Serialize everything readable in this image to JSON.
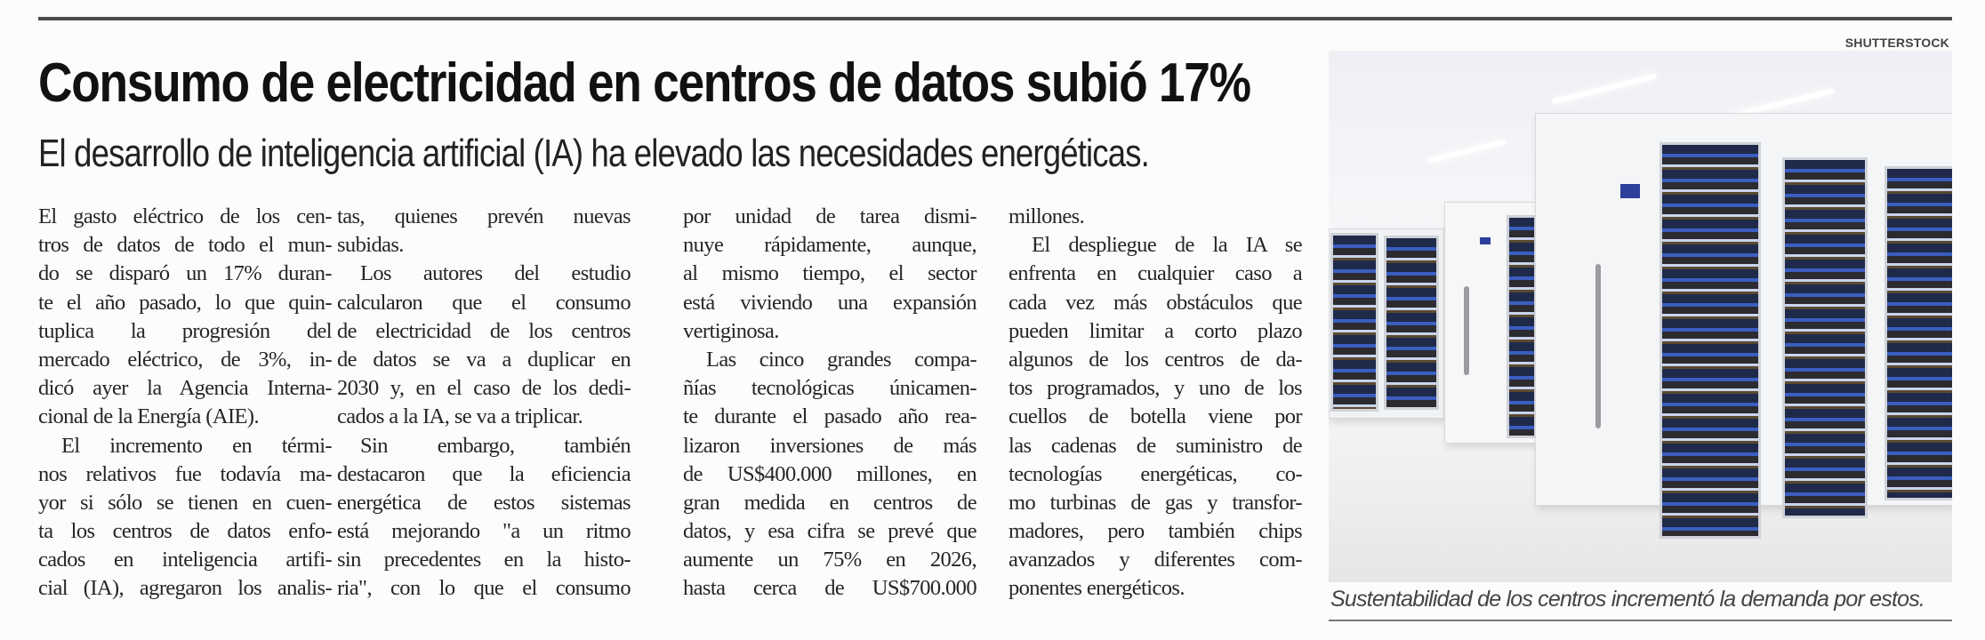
{
  "credit": "SHUTTERSTOCK",
  "headline": "Consumo de electricidad en centros de datos subió 17%",
  "subtitle": "El desarrollo de inteligencia artificial (IA) ha elevado las necesidades energéticas.",
  "columns": [
    [
      {
        "t": "El gasto eléctrico de los cen-"
      },
      {
        "t": "tros de datos de todo el mun-"
      },
      {
        "t": "do se disparó un 17% duran-"
      },
      {
        "t": "te el año pasado, lo que quin-"
      },
      {
        "t": "tuplica la progresión del"
      },
      {
        "t": "mercado eléctrico, de 3%, in-"
      },
      {
        "t": "dicó ayer la Agencia Interna-"
      },
      {
        "t": "cional de la Energía (AIE).",
        "end": true
      },
      {
        "t": "El incremento en térmi-",
        "indent": true
      },
      {
        "t": "nos relativos fue todavía ma-"
      },
      {
        "t": "yor si sólo se tienen en cuen-"
      },
      {
        "t": "ta los centros de datos enfo-"
      },
      {
        "t": "cados en inteligencia artifi-"
      },
      {
        "t": "cial (IA), agregaron los analis-"
      }
    ],
    [
      {
        "t": "tas, quienes prevén nuevas"
      },
      {
        "t": "subidas.",
        "end": true
      },
      {
        "t": "Los autores del estudio",
        "indent": true
      },
      {
        "t": "calcularon que el consumo"
      },
      {
        "t": "de electricidad de los centros"
      },
      {
        "t": "de datos se va a duplicar en"
      },
      {
        "t": "2030 y, en el caso de los dedi-"
      },
      {
        "t": "cados a la IA, se va a triplicar.",
        "end": true
      },
      {
        "t": "Sin embargo, también",
        "indent": true
      },
      {
        "t": "destacaron que la eficiencia"
      },
      {
        "t": "energética de estos sistemas"
      },
      {
        "t": "está mejorando \"a un ritmo"
      },
      {
        "t": "sin precedentes en la histo-"
      },
      {
        "t": "ria\", con lo que el consumo"
      }
    ],
    [
      {
        "t": "por unidad de tarea dismi-"
      },
      {
        "t": "nuye rápidamente, aunque,"
      },
      {
        "t": "al mismo tiempo, el sector"
      },
      {
        "t": "está viviendo una expansión"
      },
      {
        "t": "vertiginosa.",
        "end": true
      },
      {
        "t": "Las cinco grandes compa-",
        "indent": true
      },
      {
        "t": "ñías tecnológicas únicamen-"
      },
      {
        "t": "te durante el pasado año rea-"
      },
      {
        "t": "lizaron inversiones de más"
      },
      {
        "t": "de US$400.000 millones, en"
      },
      {
        "t": "gran medida en centros de"
      },
      {
        "t": "datos, y esa cifra se prevé que"
      },
      {
        "t": "aumente un 75% en 2026,"
      },
      {
        "t": "hasta cerca de US$700.000"
      }
    ],
    [
      {
        "t": "millones.",
        "end": true
      },
      {
        "t": "El despliegue de la IA se",
        "indent": true
      },
      {
        "t": "enfrenta en cualquier caso a"
      },
      {
        "t": "cada vez más obstáculos que"
      },
      {
        "t": "pueden limitar a corto plazo"
      },
      {
        "t": "algunos de los centros de da-"
      },
      {
        "t": "tos programados, y uno de los"
      },
      {
        "t": "cuellos de botella viene por"
      },
      {
        "t": "las cadenas de suministro de"
      },
      {
        "t": "tecnologías energéticas, co-"
      },
      {
        "t": "mo turbinas de gas y transfor-"
      },
      {
        "t": "madores, pero también chips"
      },
      {
        "t": "avanzados y diferentes com-"
      },
      {
        "t": "ponentes energéticos.",
        "end": true
      }
    ]
  ],
  "photo": {
    "icon": "server-room-photo"
  },
  "caption": "Sustentabilidad de los centros incrementó la demanda por estos."
}
